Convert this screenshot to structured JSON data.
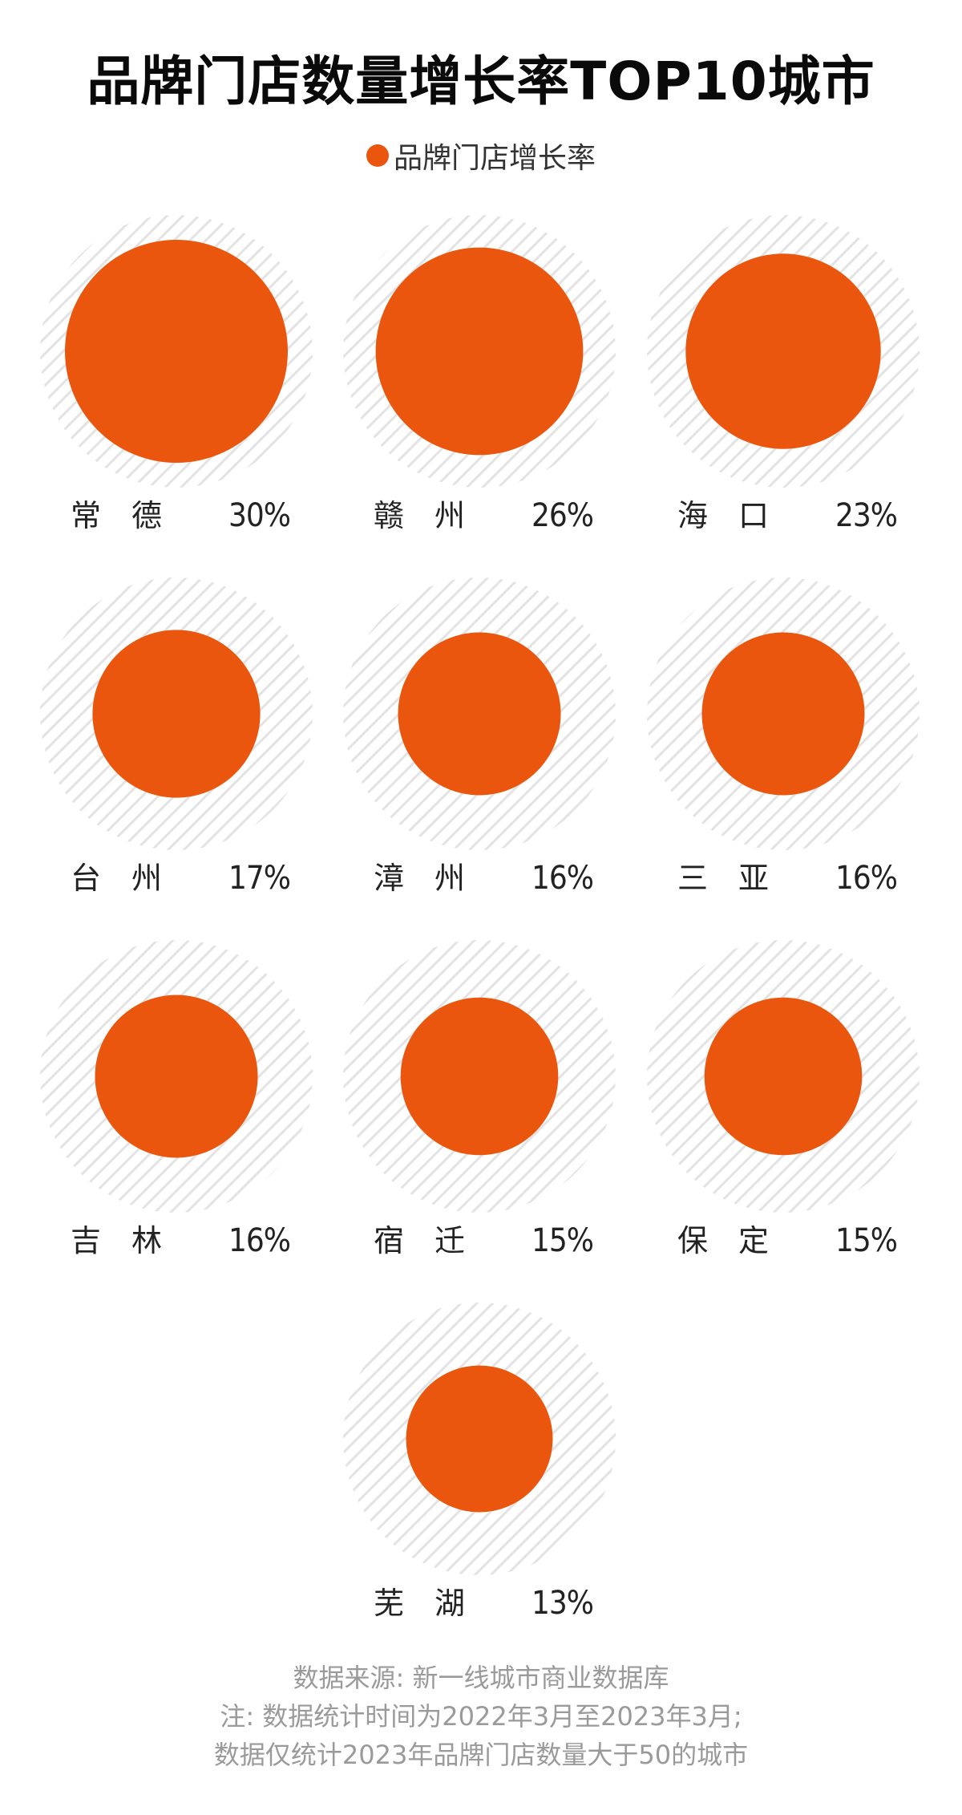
{
  "title": "品牌门店数量增长率TOP10城市",
  "legend": {
    "label": "品牌门店增长率"
  },
  "colors": {
    "accent": "#EA560D",
    "hatch_stroke": "#E3E3E3",
    "footer_text": "#9A9A9A"
  },
  "chart_data": {
    "type": "bubble",
    "title": "品牌门店数量增长率TOP10城市",
    "series": [
      {
        "name": "品牌门店增长率"
      }
    ],
    "unit": "%",
    "points": [
      {
        "city": "常德",
        "value": 30,
        "value_label": "30%"
      },
      {
        "city": "赣州",
        "value": 26,
        "value_label": "26%"
      },
      {
        "city": "海口",
        "value": 23,
        "value_label": "23%"
      },
      {
        "city": "台州",
        "value": 17,
        "value_label": "17%"
      },
      {
        "city": "漳州",
        "value": 16,
        "value_label": "16%"
      },
      {
        "city": "三亚",
        "value": 16,
        "value_label": "16%"
      },
      {
        "city": "吉林",
        "value": 16,
        "value_label": "16%"
      },
      {
        "city": "宿迁",
        "value": 15,
        "value_label": "15%"
      },
      {
        "city": "保定",
        "value": 15,
        "value_label": "15%"
      },
      {
        "city": "芜湖",
        "value": 13,
        "value_label": "13%"
      }
    ]
  },
  "footer": {
    "line1": "数据来源: 新一线城市商业数据库",
    "line2": "注: 数据统计时间为2022年3月至2023年3月;",
    "line3": "数据仅统计2023年品牌门店数量大于50的城市"
  }
}
